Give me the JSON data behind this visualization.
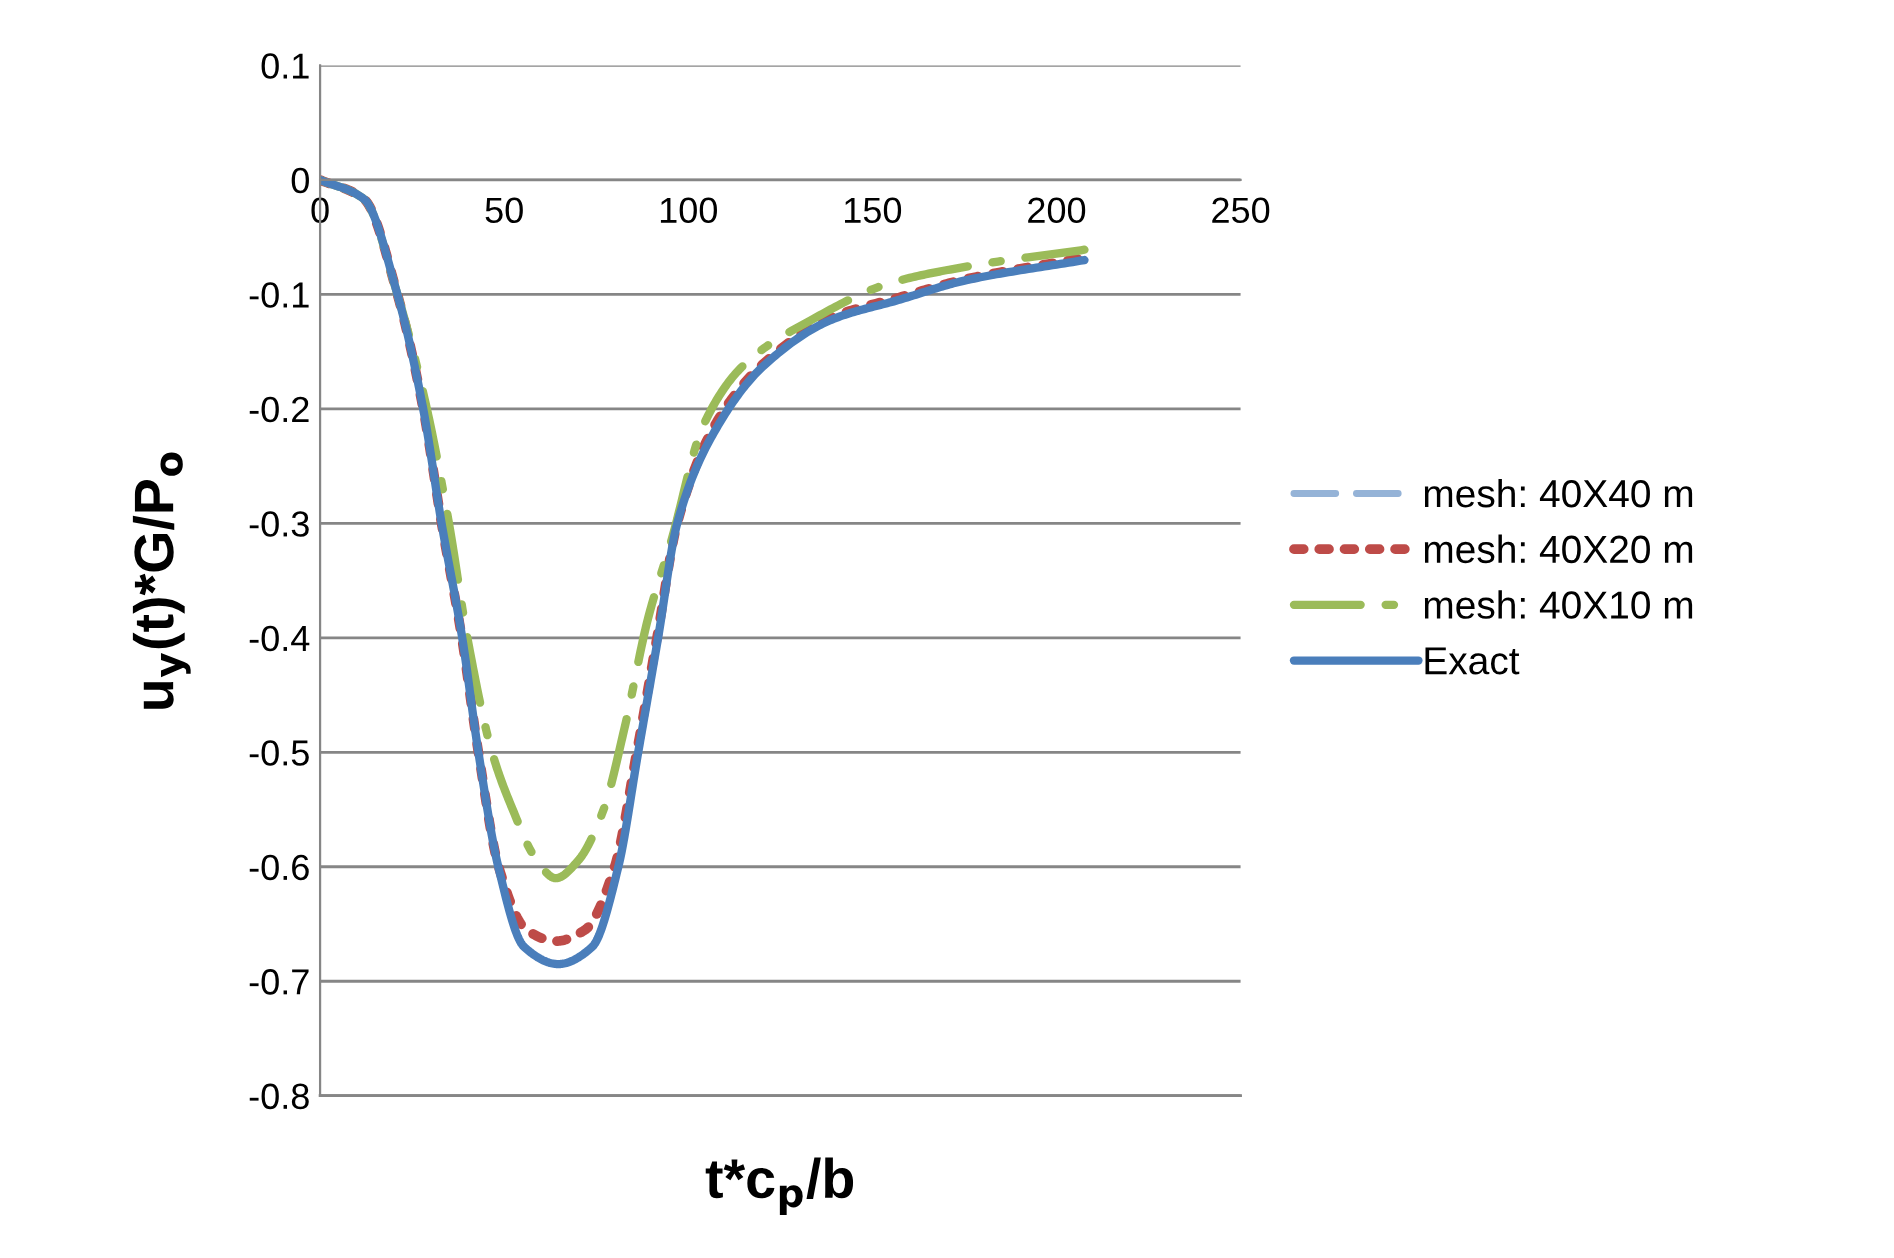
{
  "chart_data": {
    "type": "line",
    "xlabel": "t*c$_{p}$/b",
    "ylabel": "u$_{y}$(t)*G/P$_{o}$",
    "xlim": [
      0,
      250
    ],
    "xticks": [
      0,
      50,
      100,
      150,
      200,
      250
    ],
    "ylim": [
      -0.8,
      0.1
    ],
    "yticks": [
      0.1,
      0,
      -0.1,
      -0.2,
      -0.3,
      -0.4,
      -0.5,
      -0.6,
      -0.7,
      -0.8
    ],
    "grid": "y",
    "legend": "right",
    "marker": "none",
    "series": [
      {
        "name": "mesh: 40X40 m",
        "color": "#95b3d7",
        "line_style": "dashed"
      },
      {
        "name": "mesh: 40X20 m",
        "color": "#be4b48",
        "line_style": "dotted",
        "x": [
          0,
          12,
          21,
          28,
          33,
          38.5,
          43,
          48.5,
          56,
          64,
          72,
          80,
          86,
          91.5,
          97,
          108,
          120.6,
          139,
          157,
          175,
          207.6
        ],
        "values": [
          0,
          -0.017,
          -0.1,
          -0.2,
          -0.3,
          -0.4,
          -0.5,
          -0.6,
          -0.655,
          -0.665,
          -0.655,
          -0.6,
          -0.5,
          -0.4,
          -0.3,
          -0.21,
          -0.16,
          -0.12,
          -0.103,
          -0.087,
          -0.068
        ]
      },
      {
        "name": "mesh: 40X10 m",
        "color": "#9bbb59",
        "line_style": "dashdot",
        "x": [
          0,
          12,
          21,
          29,
          35,
          40,
          46.7,
          52.7,
          58,
          64,
          70,
          77,
          82.6,
          89,
          95.5,
          104,
          115,
          133.6,
          155,
          177,
          207.6
        ],
        "values": [
          0,
          -0.017,
          -0.1,
          -0.2,
          -0.3,
          -0.4,
          -0.5,
          -0.553,
          -0.59,
          -0.61,
          -0.595,
          -0.55,
          -0.48,
          -0.384,
          -0.314,
          -0.215,
          -0.162,
          -0.122,
          -0.09,
          -0.075,
          -0.061
        ]
      },
      {
        "name": "Exact",
        "color": "#4a7ebb",
        "line_style": "solid",
        "x": [
          0,
          12,
          21,
          28,
          33,
          38.6,
          43,
          48.4,
          55.4,
          64.7,
          73.9,
          81,
          86.4,
          91.8,
          97,
          108,
          120.6,
          139,
          157,
          175,
          207.6
        ],
        "values": [
          0,
          -0.017,
          -0.1,
          -0.2,
          -0.3,
          -0.4,
          -0.5,
          -0.6,
          -0.67,
          -0.685,
          -0.67,
          -0.6,
          -0.5,
          -0.4,
          -0.3,
          -0.215,
          -0.162,
          -0.122,
          -0.105,
          -0.088,
          -0.07
        ]
      }
    ]
  }
}
